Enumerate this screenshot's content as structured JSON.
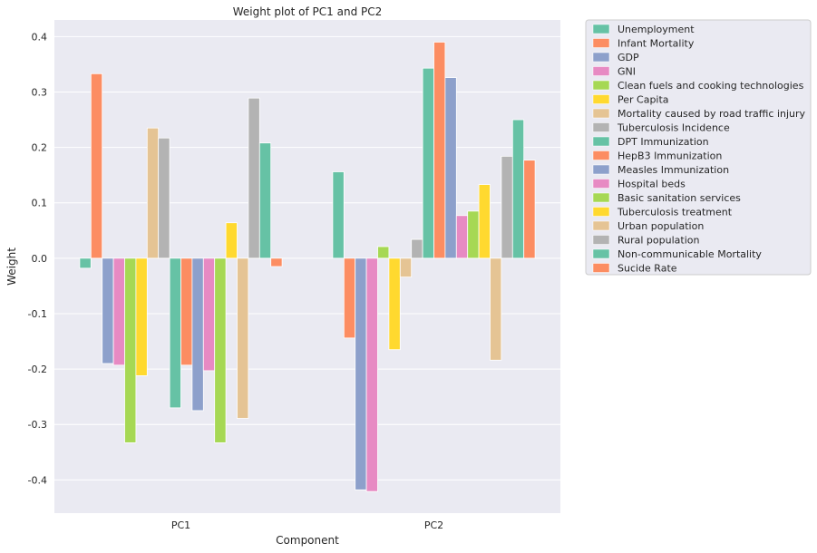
{
  "chart_data": {
    "type": "bar",
    "title": "Weight plot of PC1 and PC2",
    "xlabel": "Component",
    "ylabel": "Weight",
    "categories": [
      "PC1",
      "PC2"
    ],
    "ylim": [
      -0.46,
      0.43
    ],
    "yticks": [
      -0.4,
      -0.3,
      -0.2,
      -0.1,
      0.0,
      0.1,
      0.2,
      0.3,
      0.4
    ],
    "ytick_labels": [
      "-0.4",
      "-0.3",
      "-0.2",
      "-0.1",
      "0.0",
      "0.1",
      "0.2",
      "0.3",
      "0.4"
    ],
    "grid": true,
    "legend_position": "outside-right",
    "series": [
      {
        "name": "Unemployment",
        "color": "#66c2a5",
        "values": [
          -0.018,
          0.156
        ]
      },
      {
        "name": "Infant Mortality",
        "color": "#fc8d62",
        "values": [
          0.333,
          -0.144
        ]
      },
      {
        "name": "GDP",
        "color": "#8da0cb",
        "values": [
          -0.19,
          -0.418
        ]
      },
      {
        "name": "GNI",
        "color": "#e78ac3",
        "values": [
          -0.193,
          -0.421
        ]
      },
      {
        "name": "Clean fuels and cooking technologies",
        "color": "#a6d854",
        "values": [
          -0.333,
          0.021
        ]
      },
      {
        "name": "Per Capita",
        "color": "#ffd92f",
        "values": [
          -0.212,
          -0.165
        ]
      },
      {
        "name": "Mortality caused by road traffic injury",
        "color": "#e5c494",
        "values": [
          0.235,
          -0.034
        ]
      },
      {
        "name": "Tuberculosis Incidence",
        "color": "#b3b3b3",
        "values": [
          0.217,
          0.034
        ]
      },
      {
        "name": "DPT Immunization",
        "color": "#66c2a5",
        "values": [
          -0.27,
          0.343
        ]
      },
      {
        "name": "HepB3 Immunization",
        "color": "#fc8d62",
        "values": [
          -0.193,
          0.39
        ]
      },
      {
        "name": "Measles Immunization",
        "color": "#8da0cb",
        "values": [
          -0.275,
          0.326
        ]
      },
      {
        "name": "Hospital beds",
        "color": "#e78ac3",
        "values": [
          -0.203,
          0.077
        ]
      },
      {
        "name": "Basic sanitation services",
        "color": "#a6d854",
        "values": [
          -0.333,
          0.085
        ]
      },
      {
        "name": "Tuberculosis treatment",
        "color": "#ffd92f",
        "values": [
          0.064,
          0.133
        ]
      },
      {
        "name": "Urban population",
        "color": "#e5c494",
        "values": [
          -0.289,
          -0.184
        ]
      },
      {
        "name": "Rural population",
        "color": "#b3b3b3",
        "values": [
          0.289,
          0.184
        ]
      },
      {
        "name": "Non-communicable Mortality",
        "color": "#66c2a5",
        "values": [
          0.208,
          0.25
        ]
      },
      {
        "name": "Sucide Rate",
        "color": "#fc8d62",
        "values": [
          -0.015,
          0.177
        ]
      }
    ]
  }
}
